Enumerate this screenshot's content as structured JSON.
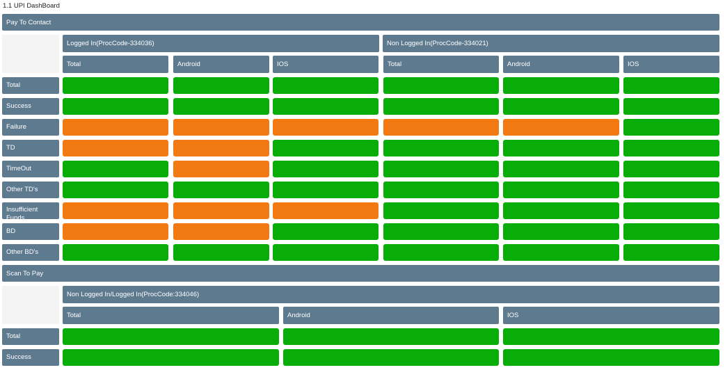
{
  "page_title": "1.1 UPI DashBoard",
  "colors": {
    "header": "#5e7a8f",
    "green": "#08ad08",
    "orange": "#f37913"
  },
  "pay_to_contact": {
    "title": "Pay To Contact",
    "groups": [
      {
        "label": "Logged In(ProcCode-334036)",
        "columns": [
          "Total",
          "Android",
          "IOS"
        ]
      },
      {
        "label": "Non Logged In(ProcCode-334021)",
        "columns": [
          "Total",
          "Android",
          "IOS"
        ]
      }
    ],
    "rows": [
      {
        "label": "Total",
        "status": [
          "green",
          "green",
          "green",
          "green",
          "green",
          "green"
        ]
      },
      {
        "label": "Success",
        "status": [
          "green",
          "green",
          "green",
          "green",
          "green",
          "green"
        ]
      },
      {
        "label": "Failure",
        "status": [
          "orange",
          "orange",
          "orange",
          "orange",
          "orange",
          "green"
        ]
      },
      {
        "label": "TD",
        "status": [
          "orange",
          "orange",
          "green",
          "green",
          "green",
          "green"
        ]
      },
      {
        "label": "TimeOut",
        "status": [
          "green",
          "orange",
          "green",
          "green",
          "green",
          "green"
        ]
      },
      {
        "label": "Other TD's",
        "status": [
          "green",
          "green",
          "green",
          "green",
          "green",
          "green"
        ]
      },
      {
        "label": "Insufficient Funds",
        "status": [
          "orange",
          "orange",
          "orange",
          "green",
          "green",
          "green"
        ]
      },
      {
        "label": "BD",
        "status": [
          "orange",
          "orange",
          "green",
          "green",
          "green",
          "green"
        ]
      },
      {
        "label": "Other BD's",
        "status": [
          "green",
          "green",
          "green",
          "green",
          "green",
          "green"
        ]
      }
    ]
  },
  "scan_to_pay": {
    "title": "Scan To Pay",
    "group_label": "Non Logged In/Logged In(ProcCode:334046)",
    "columns": [
      "Total",
      "Android",
      "IOS"
    ],
    "rows": [
      {
        "label": "Total",
        "status": [
          "green",
          "green",
          "green"
        ]
      },
      {
        "label": "Success",
        "status": [
          "green",
          "green",
          "green"
        ]
      }
    ]
  }
}
